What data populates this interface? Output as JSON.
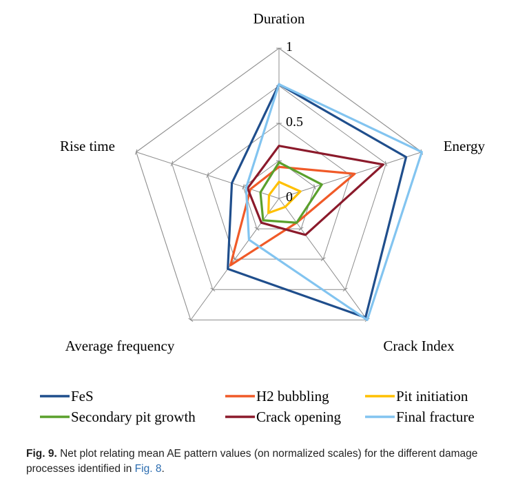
{
  "chart_data": {
    "type": "radar",
    "axes": [
      "Duration",
      "Energy",
      "Crack Index",
      "Average frequency",
      "Rise time"
    ],
    "rlim": [
      0,
      1
    ],
    "ticks": [
      {
        "value": 0,
        "label": "0"
      },
      {
        "value": 0.5,
        "label": "0.5"
      },
      {
        "value": 1,
        "label": "1"
      }
    ],
    "grid_levels": [
      0.25,
      0.5,
      0.75,
      1.0
    ],
    "legend_position": "bottom",
    "series": [
      {
        "name": "FeS",
        "color": "#1f4e8c",
        "values": [
          0.76,
          0.89,
          0.98,
          0.58,
          0.33
        ]
      },
      {
        "name": "H2 bubbling",
        "color": "#f05a28",
        "values": [
          0.21,
          0.53,
          0.2,
          0.55,
          0.2
        ]
      },
      {
        "name": "Pit initiation",
        "color": "#ffc000",
        "values": [
          0.11,
          0.15,
          0.07,
          0.12,
          0.07
        ]
      },
      {
        "name": "Secondary pit growth",
        "color": "#5aa02c",
        "values": [
          0.24,
          0.3,
          0.2,
          0.18,
          0.13
        ]
      },
      {
        "name": "Crack opening",
        "color": "#8b1a2b",
        "values": [
          0.35,
          0.73,
          0.3,
          0.2,
          0.22
        ]
      },
      {
        "name": "Final fracture",
        "color": "#82c4f0",
        "values": [
          0.76,
          1.0,
          1.0,
          0.34,
          0.23
        ]
      }
    ]
  },
  "caption": {
    "label": "Fig. 9.",
    "text_before_ref": " Net plot relating mean AE pattern values (on normalized scales) for the different damage processes identified in ",
    "ref": "Fig. 8",
    "text_after_ref": "."
  }
}
